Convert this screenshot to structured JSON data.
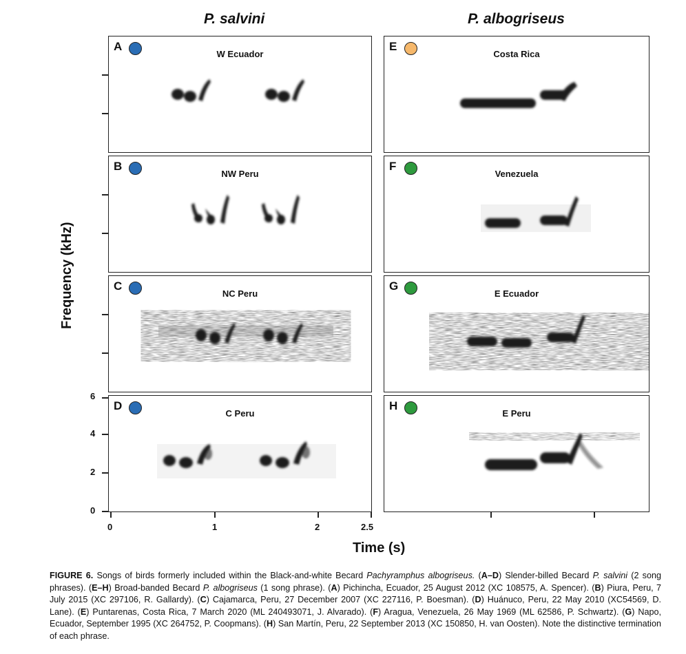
{
  "figure": {
    "columns": [
      {
        "title": "P. salvini"
      },
      {
        "title": "P. albogriseus"
      }
    ],
    "y_axis_label": "Frequency (kHz)",
    "x_axis_label": "Time (s)",
    "y_ticks": [
      "6",
      "4",
      "2",
      "0"
    ],
    "x_ticks": [
      "0",
      "1",
      "2",
      "2.5"
    ],
    "panels": [
      {
        "letter": "A",
        "region": "W Ecuador",
        "dot_color": "#2a6db5"
      },
      {
        "letter": "B",
        "region": "NW Peru",
        "dot_color": "#2a6db5"
      },
      {
        "letter": "C",
        "region": "NC Peru",
        "dot_color": "#2a6db5"
      },
      {
        "letter": "D",
        "region": "C Peru",
        "dot_color": "#2a6db5"
      },
      {
        "letter": "E",
        "region": "Costa Rica",
        "dot_color": "#f6b86b"
      },
      {
        "letter": "F",
        "region": "Venezuela",
        "dot_color": "#2e9a3e"
      },
      {
        "letter": "G",
        "region": "E Ecuador",
        "dot_color": "#2e9a3e"
      },
      {
        "letter": "H",
        "region": "E Peru",
        "dot_color": "#2e9a3e"
      }
    ]
  },
  "caption": {
    "label": "FIGURE 6.",
    "s1": " Songs of birds formerly included within the Black-and-white Becard ",
    "s1i": "Pachyramphus albogriseus.",
    "s2a": " (",
    "ad": "A–D",
    "s2b": ") Slender-billed Becard ",
    "s2i": "P. salvini",
    "s2c": " (2 song phrases). (",
    "eh": "E–H",
    "s3a": ") Broad-banded Becard ",
    "s3i": "P. albogriseus",
    "s3b": " (1 song phrase). (",
    "a": "A",
    "sa": ") Pichincha, Ecuador, 25 August 2012 (XC 108575, A. Spencer). (",
    "b": "B",
    "sb": ") Piura, Peru, 7 July 2015 (XC 297106, R. Gallardy). (",
    "c": "C",
    "sc": ") Cajamarca, Peru, 27 December 2007 (XC 227116, P. Boesman). (",
    "d": "D",
    "sd": ") Huánuco, Peru, 22 May 2010 (XC54569, D. Lane). (",
    "e": "E",
    "se": ") Puntarenas, Costa Rica, 7 March 2020 (ML 240493071, J. Alvarado). (",
    "f": "F",
    "sf": ") Aragua, Venezuela, 26 May 1969 (ML 62586, P. Schwartz). (",
    "g": "G",
    "sg": ") Napo, Ecuador, September 1995 (XC 264752, P. Coopmans). (",
    "h": "H",
    "sh": ") San Martín, Peru, 22 September 2013 (XC 150850, H. van Oosten). Note the distinctive termination of each phrase."
  }
}
